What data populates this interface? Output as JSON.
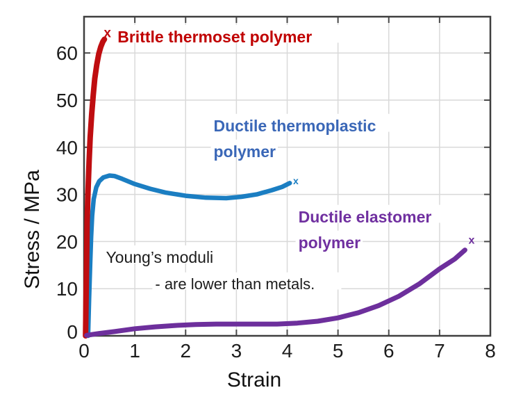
{
  "figure": {
    "background": "#ffffff",
    "axis_color": "#3f3f3f",
    "grid_color": "#d9d9d9",
    "tick_label_color": "#1c1c1c"
  },
  "chart_data": {
    "type": "line",
    "title": "",
    "xlabel": "Strain",
    "ylabel": "Stress / MPa",
    "xlim": [
      0,
      8
    ],
    "ylim": [
      0,
      67.7
    ],
    "x_ticks": [
      0,
      1,
      2,
      3,
      4,
      5,
      6,
      7,
      8
    ],
    "y_ticks": [
      0,
      10,
      20,
      30,
      40,
      50,
      60
    ],
    "grid": true,
    "legend": "none (labels annotated on plot)",
    "series": [
      {
        "name": "Ductile thermoplastic polymer",
        "color": "#1b7ec2",
        "line_width": 6.5,
        "points": [
          [
            0.08,
            0
          ],
          [
            0.1,
            8
          ],
          [
            0.12,
            15
          ],
          [
            0.14,
            21
          ],
          [
            0.16,
            25.5
          ],
          [
            0.19,
            29
          ],
          [
            0.24,
            31.5
          ],
          [
            0.3,
            32.8
          ],
          [
            0.38,
            33.6
          ],
          [
            0.5,
            34
          ],
          [
            0.6,
            33.9
          ],
          [
            0.75,
            33.3
          ],
          [
            1.0,
            32.2
          ],
          [
            1.3,
            31.2
          ],
          [
            1.6,
            30.4
          ],
          [
            2.0,
            29.7
          ],
          [
            2.4,
            29.3
          ],
          [
            2.8,
            29.2
          ],
          [
            3.1,
            29.5
          ],
          [
            3.4,
            30.0
          ],
          [
            3.7,
            30.9
          ],
          [
            3.9,
            31.6
          ],
          [
            4.05,
            32.4
          ]
        ],
        "fracture_marker": {
          "x": 4.17,
          "y": 32.9,
          "glyph": "x",
          "size": 14
        }
      },
      {
        "name": "Brittle thermoset polymer",
        "color": "#bf0d10",
        "line_width": 8,
        "points": [
          [
            0.03,
            0
          ],
          [
            0.04,
            8
          ],
          [
            0.05,
            16
          ],
          [
            0.06,
            24
          ],
          [
            0.08,
            31
          ],
          [
            0.1,
            37
          ],
          [
            0.12,
            42
          ],
          [
            0.15,
            47
          ],
          [
            0.18,
            51
          ],
          [
            0.21,
            54.5
          ],
          [
            0.25,
            57.5
          ],
          [
            0.29,
            59.8
          ],
          [
            0.33,
            61.3
          ],
          [
            0.37,
            62.4
          ],
          [
            0.4,
            62.9
          ]
        ],
        "fracture_marker": {
          "x": 0.46,
          "y": 64.3,
          "glyph": "x",
          "size": 19
        }
      },
      {
        "name": "Ductile elastomer polymer",
        "color": "#6d2f9c",
        "line_width": 7,
        "points": [
          [
            0.05,
            0.1
          ],
          [
            0.3,
            0.5
          ],
          [
            0.6,
            0.9
          ],
          [
            1.0,
            1.5
          ],
          [
            1.4,
            1.9
          ],
          [
            1.8,
            2.2
          ],
          [
            2.2,
            2.4
          ],
          [
            2.6,
            2.5
          ],
          [
            3.0,
            2.5
          ],
          [
            3.4,
            2.5
          ],
          [
            3.8,
            2.5
          ],
          [
            4.2,
            2.7
          ],
          [
            4.6,
            3.1
          ],
          [
            5.0,
            3.8
          ],
          [
            5.4,
            4.9
          ],
          [
            5.8,
            6.4
          ],
          [
            6.2,
            8.4
          ],
          [
            6.6,
            11.0
          ],
          [
            7.0,
            14.2
          ],
          [
            7.3,
            16.3
          ],
          [
            7.5,
            18.2
          ]
        ],
        "fracture_marker": {
          "x": 7.63,
          "y": 20.4,
          "glyph": "x",
          "size": 16
        }
      }
    ],
    "annotations": [
      {
        "name": "brittle-thermoset-label",
        "lines": [
          "Brittle thermoset polymer"
        ],
        "x": 0.66,
        "y": 63.2,
        "color": "#c00000",
        "bold": true,
        "size": 23,
        "line_height": 37
      },
      {
        "name": "ductile-thermoplastic-label",
        "lines": [
          "Ductile thermoplastic",
          "polymer"
        ],
        "x": 2.55,
        "y": 44.3,
        "color": "#3a67b7",
        "bold": true,
        "size": 23,
        "line_height": 37
      },
      {
        "name": "ductile-elastomer-label",
        "lines": [
          "Ductile elastomer",
          "polymer"
        ],
        "x": 4.22,
        "y": 25.0,
        "color": "#7030a0",
        "bold": true,
        "size": 23,
        "line_height": 37
      },
      {
        "name": "youngs-moduli-note-1",
        "lines": [
          "Young’s moduli"
        ],
        "x": 0.43,
        "y": 16.4,
        "color": "#1c1c1c",
        "bold": false,
        "size": 23,
        "line_height": 38
      },
      {
        "name": "youngs-moduli-note-2",
        "lines": [
          "- are lower than metals."
        ],
        "x": 1.4,
        "y": 10.8,
        "color": "#1c1c1c",
        "bold": false,
        "size": 22,
        "line_height": 38
      }
    ]
  }
}
